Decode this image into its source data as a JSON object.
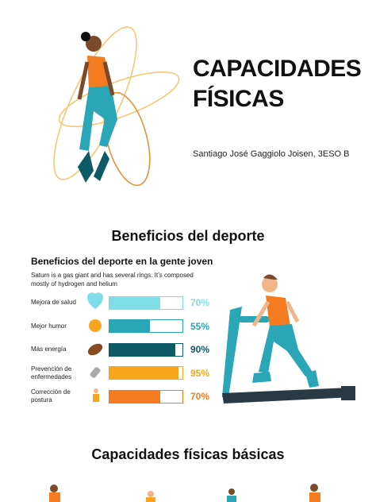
{
  "header": {
    "title_lines": [
      "CAPACIDADES",
      "FÍSICAS"
    ],
    "author": "Santiago José Gaggiolo Joisen, 3ESO B"
  },
  "section1": {
    "title": "Beneficios del deporte",
    "subtitle": "Beneficios del deporte en la gente joven",
    "description": "Saturn is a gas giant and has several rings. It’s composed mostly of hydrogen and helium",
    "items": [
      {
        "label": [
          "Mejora de salud"
        ],
        "value": 70,
        "value_label": "70%",
        "color": "#7fdde8"
      },
      {
        "label": [
          "Mejor humor"
        ],
        "value": 55,
        "value_label": "55%",
        "color": "#2aa6b7"
      },
      {
        "label": [
          "Más energía"
        ],
        "value": 90,
        "value_label": "90%",
        "color": "#0e5a66"
      },
      {
        "label": [
          "Prevención de",
          "enfermedades"
        ],
        "value": 95,
        "value_label": "95%",
        "color": "#f7a51c"
      },
      {
        "label": [
          "Corrección de",
          "postura"
        ],
        "value": 70,
        "value_label": "70%",
        "color": "#f47b20"
      }
    ]
  },
  "section2": {
    "title": "Capacidades  físicas básicas"
  }
}
